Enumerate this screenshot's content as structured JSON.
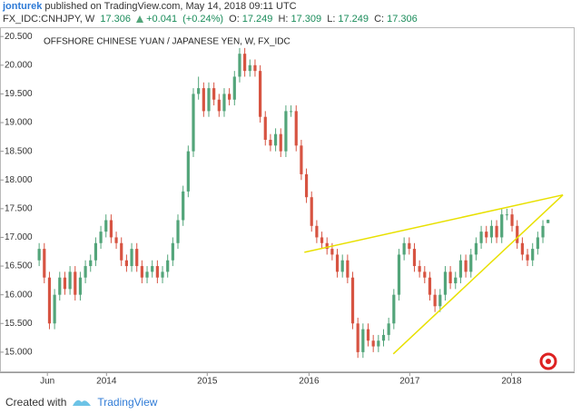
{
  "header": {
    "author": "jonturek",
    "published": "published on TradingView.com, May 14, 2018 09:11 UTC",
    "symbol": "FX_IDC:CNHJPY, W",
    "change": {
      "value": 0.041,
      "label": "+0.041"
    },
    "change_pct": {
      "value": 0.24,
      "label": "(+0.24%)"
    },
    "ohlc_labels": [
      "O:",
      "H:",
      "L:",
      "C:"
    ]
  },
  "footer": {
    "created": "Created with",
    "brand": "TradingView"
  },
  "chart_data": {
    "type": "candlestick",
    "title": "OFFSHORE CHINESE YUAN / JAPANESE YEN, W, FX_IDC",
    "up_color": "#53a57a",
    "down_color": "#d75442",
    "grid": false,
    "xlim": [
      -0.2,
      104
    ],
    "xticks": [
      {
        "value": 1.6,
        "label": "Jun"
      },
      {
        "value": 13.1,
        "label": "2014"
      },
      {
        "value": 32.7,
        "label": "2015"
      },
      {
        "value": 52.5,
        "label": "2016"
      },
      {
        "value": 72.1,
        "label": "2017"
      },
      {
        "value": 91.9,
        "label": "2018"
      }
    ],
    "ylim": [
      14.65,
      20.63
    ],
    "yticks": [
      {
        "value": 15,
        "label": "15.000"
      },
      {
        "value": 15.5,
        "label": "15.500"
      },
      {
        "value": 16,
        "label": "16.000"
      },
      {
        "value": 16.5,
        "label": "16.500"
      },
      {
        "value": 17,
        "label": "17.000"
      },
      {
        "value": 17.5,
        "label": "17.500"
      },
      {
        "value": 18,
        "label": "18.000"
      },
      {
        "value": 18.5,
        "label": "18.500"
      },
      {
        "value": 19,
        "label": "19.000"
      },
      {
        "value": 19.5,
        "label": "19.500"
      },
      {
        "value": 20,
        "label": "20.000"
      },
      {
        "value": 20.5,
        "label": "20.500"
      }
    ],
    "open": [
      16.6,
      16.8,
      16.3,
      15.5,
      16.0,
      16.3,
      16.1,
      16.4,
      16.0,
      16.3,
      16.5,
      16.6,
      16.9,
      17.1,
      17.3,
      17.0,
      16.9,
      16.6,
      16.5,
      16.8,
      16.5,
      16.3,
      16.4,
      16.5,
      16.3,
      16.4,
      16.6,
      16.9,
      17.3,
      17.8,
      18.5,
      19.5,
      19.6,
      19.2,
      19.6,
      19.4,
      19.2,
      19.5,
      19.4,
      19.8,
      20.2,
      19.9,
      20.0,
      19.9,
      19.1,
      18.7,
      18.6,
      18.8,
      18.5,
      19.2,
      19.2,
      18.6,
      18.1,
      17.7,
      17.2,
      17.0,
      16.9,
      16.8,
      16.7,
      16.4,
      16.6,
      16.3,
      15.5,
      15.0,
      15.4,
      15.2,
      15.1,
      15.2,
      15.3,
      15.5,
      16.0,
      16.7,
      16.9,
      16.8,
      16.5,
      16.4,
      16.3,
      16.0,
      15.8,
      16.0,
      16.4,
      16.2,
      16.3,
      16.6,
      16.4,
      16.7,
      16.9,
      17.1,
      17.0,
      17.2,
      17.0,
      17.4,
      17.4,
      17.2,
      16.9,
      16.7,
      16.6,
      16.8,
      17.0,
      17.249
    ],
    "high": [
      16.9,
      16.9,
      16.4,
      16.1,
      16.4,
      16.4,
      16.5,
      16.5,
      16.4,
      16.6,
      16.7,
      17.0,
      17.2,
      17.4,
      17.4,
      17.1,
      17.0,
      16.7,
      16.9,
      16.9,
      16.6,
      16.5,
      16.6,
      16.6,
      16.5,
      16.7,
      17.0,
      17.4,
      17.9,
      18.6,
      19.6,
      19.8,
      19.7,
      19.7,
      19.7,
      19.5,
      19.6,
      19.6,
      19.9,
      20.3,
      20.3,
      20.1,
      20.1,
      20.0,
      19.2,
      18.8,
      18.9,
      18.9,
      19.3,
      19.3,
      19.3,
      18.7,
      18.2,
      17.8,
      17.3,
      17.1,
      17.0,
      16.9,
      16.8,
      16.7,
      16.7,
      16.4,
      15.6,
      15.5,
      15.5,
      15.3,
      15.3,
      15.4,
      15.6,
      16.1,
      16.8,
      17.0,
      17.0,
      16.9,
      16.6,
      16.5,
      16.4,
      16.1,
      16.1,
      16.5,
      16.5,
      16.4,
      16.7,
      16.7,
      16.8,
      17.0,
      17.2,
      17.2,
      17.3,
      17.3,
      17.5,
      17.5,
      17.5,
      17.3,
      17.0,
      16.8,
      16.9,
      17.1,
      17.3,
      17.309
    ],
    "low": [
      16.5,
      16.2,
      15.4,
      15.4,
      15.9,
      16.0,
      16.0,
      15.9,
      15.9,
      16.2,
      16.4,
      16.5,
      16.8,
      17.0,
      16.9,
      16.8,
      16.5,
      16.4,
      16.4,
      16.4,
      16.2,
      16.2,
      16.3,
      16.2,
      16.2,
      16.3,
      16.5,
      16.8,
      17.2,
      17.7,
      18.4,
      19.4,
      19.1,
      19.1,
      19.3,
      19.1,
      19.1,
      19.3,
      19.3,
      19.7,
      19.8,
      19.8,
      19.8,
      19.0,
      18.6,
      18.5,
      18.5,
      18.4,
      18.4,
      19.1,
      18.5,
      18.0,
      17.6,
      17.1,
      16.9,
      16.8,
      16.7,
      16.6,
      16.3,
      16.3,
      16.2,
      15.4,
      14.9,
      14.9,
      15.1,
      15.0,
      15.0,
      15.1,
      15.2,
      15.4,
      15.9,
      16.6,
      16.7,
      16.4,
      16.3,
      16.2,
      15.9,
      15.7,
      15.7,
      15.9,
      16.1,
      16.1,
      16.2,
      16.3,
      16.3,
      16.6,
      16.8,
      16.9,
      16.9,
      16.9,
      16.9,
      17.3,
      17.1,
      16.8,
      16.6,
      16.5,
      16.5,
      16.7,
      16.9,
      17.249
    ],
    "close": [
      16.8,
      16.3,
      15.5,
      16.0,
      16.3,
      16.1,
      16.4,
      16.0,
      16.3,
      16.5,
      16.6,
      16.9,
      17.1,
      17.3,
      17.0,
      16.9,
      16.6,
      16.5,
      16.8,
      16.5,
      16.3,
      16.4,
      16.5,
      16.3,
      16.4,
      16.6,
      16.9,
      17.3,
      17.8,
      18.5,
      19.5,
      19.6,
      19.2,
      19.6,
      19.4,
      19.2,
      19.5,
      19.4,
      19.8,
      20.2,
      19.9,
      20.0,
      19.9,
      19.1,
      18.7,
      18.6,
      18.8,
      18.5,
      19.2,
      19.2,
      18.6,
      18.1,
      17.7,
      17.2,
      17.0,
      16.9,
      16.8,
      16.7,
      16.4,
      16.6,
      16.3,
      15.5,
      15.0,
      15.4,
      15.2,
      15.1,
      15.2,
      15.3,
      15.5,
      16.0,
      16.7,
      16.9,
      16.8,
      16.5,
      16.4,
      16.3,
      16.0,
      15.8,
      16.0,
      16.4,
      16.2,
      16.3,
      16.6,
      16.4,
      16.7,
      16.9,
      17.1,
      17.0,
      17.2,
      17.0,
      17.4,
      17.4,
      17.2,
      16.9,
      16.7,
      16.6,
      16.8,
      17.0,
      17.2,
      17.306
    ],
    "trendlines": [
      {
        "x": [
          51.6,
          101.9
        ],
        "y": [
          16.74,
          17.74
        ],
        "color": "#e8e000"
      },
      {
        "x": [
          68.9,
          101.9
        ],
        "y": [
          14.97,
          17.74
        ],
        "color": "#e8e000"
      }
    ]
  }
}
